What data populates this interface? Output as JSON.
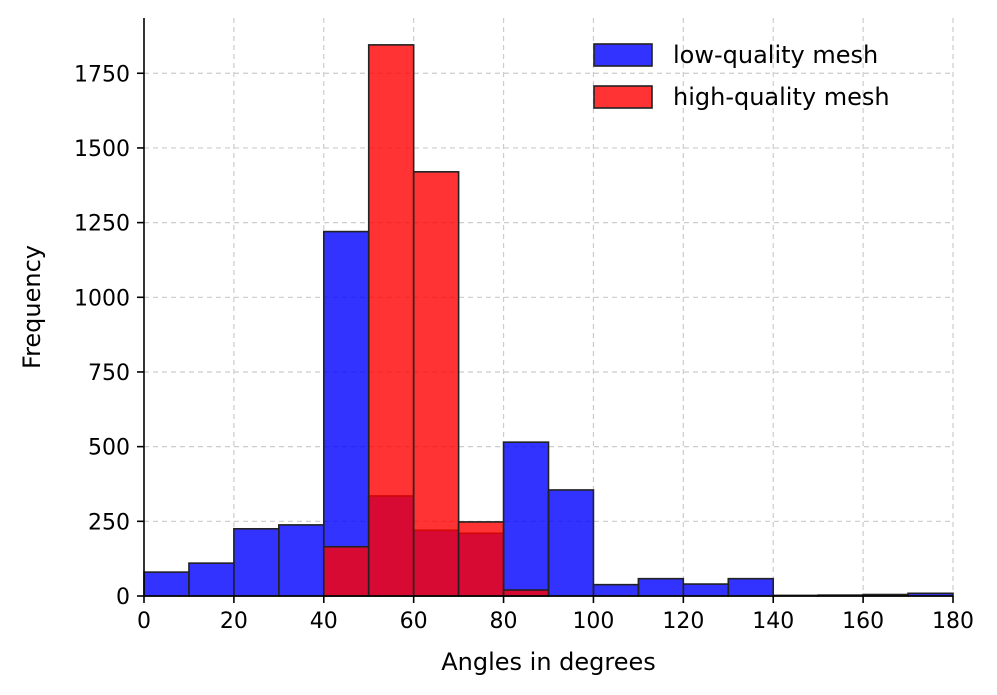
{
  "chart_data": {
    "type": "bar",
    "subtype": "overlaid-histogram",
    "title": "",
    "xlabel": "Angles in degrees",
    "ylabel": "Frequency",
    "xlim": [
      0,
      180
    ],
    "ylim": [
      0,
      1935
    ],
    "bin_edges": [
      0,
      10,
      20,
      30,
      40,
      50,
      60,
      70,
      80,
      90,
      100,
      110,
      120,
      130,
      140,
      150,
      160,
      170,
      180
    ],
    "xticks": [
      0,
      20,
      40,
      60,
      80,
      100,
      120,
      140,
      160,
      180
    ],
    "yticks": [
      0,
      250,
      500,
      750,
      1000,
      1250,
      1500,
      1750
    ],
    "grid": true,
    "grid_style": "dashed",
    "legend_position": "top-right",
    "colors": {
      "low": "#0000ff",
      "high": "#ff0000",
      "edge": "#222222",
      "grid": "#cccccc"
    },
    "series": [
      {
        "name": "low-quality mesh",
        "color": "#0000ff",
        "alpha": 0.8,
        "values": [
          80,
          110,
          225,
          238,
          1220,
          335,
          220,
          210,
          515,
          355,
          38,
          58,
          40,
          58,
          2,
          3,
          5,
          9
        ]
      },
      {
        "name": "high-quality mesh",
        "color": "#ff0000",
        "alpha": 0.8,
        "values": [
          0,
          0,
          0,
          0,
          165,
          1845,
          1420,
          248,
          20,
          0,
          0,
          0,
          0,
          0,
          0,
          0,
          0,
          0
        ]
      }
    ]
  }
}
